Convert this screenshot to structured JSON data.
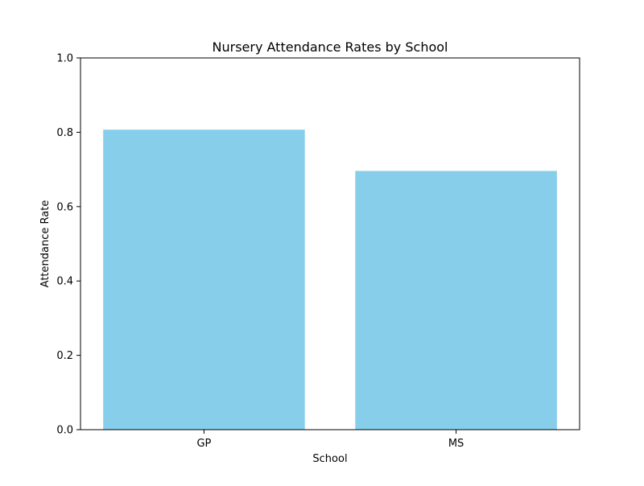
{
  "chart_data": {
    "type": "bar",
    "title": "Nursery Attendance Rates by School",
    "xlabel": "School",
    "ylabel": "Attendance Rate",
    "categories": [
      "GP",
      "MS"
    ],
    "values": [
      0.807,
      0.696
    ],
    "ylim": [
      0,
      1.0
    ],
    "yticks": [
      "0.0",
      "0.2",
      "0.4",
      "0.6",
      "0.8",
      "1.0"
    ],
    "grid": false,
    "legend": "none",
    "bar_color": "#87CEEB"
  }
}
